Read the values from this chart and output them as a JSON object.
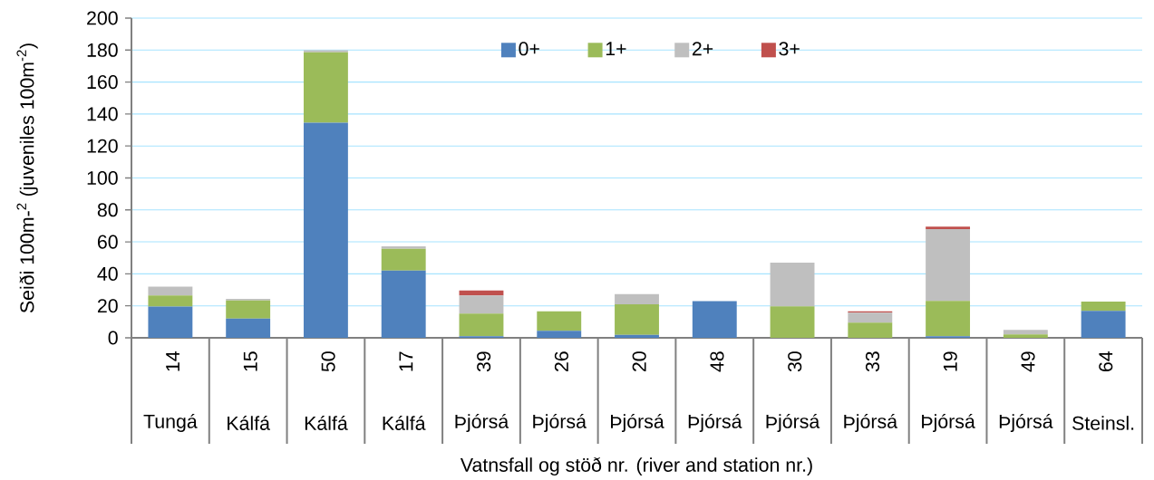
{
  "chart_data": {
    "type": "bar",
    "stacked": true,
    "xlabel": "Vatnsfall og stöð nr. (river and station nr.)",
    "ylabel": "Seiði 100m-$^{2}$ (juveniles 100m$^{-2}$)",
    "categories": [
      "14",
      "15",
      "50",
      "17",
      "39",
      "26",
      "20",
      "48",
      "30",
      "33",
      "19",
      "49",
      "64"
    ],
    "annotations": [
      "Tungá",
      "Kálfá",
      "Kálfá",
      "Kálfá",
      "Þjórsá",
      "Þjórsá",
      "Þjórsá",
      "Þjórsá",
      "Þjórsá",
      "Þjórsá",
      "Þjórsá",
      "Þjórsá",
      "Steinsl."
    ],
    "series": [
      {
        "name": "0+",
        "color": "#4f81bd",
        "values": [
          19.5,
          12,
          134.6,
          42.1,
          1,
          4.4,
          1.9,
          22.9,
          null,
          null,
          1,
          null,
          16.9
        ]
      },
      {
        "name": "1+",
        "color": "#9bbb59",
        "values": [
          7,
          11.3,
          44,
          13.6,
          14.2,
          12.1,
          19,
          null,
          19.7,
          9.5,
          22.1,
          2.1,
          5.7
        ]
      },
      {
        "name": "2+",
        "color": "#bfbfbf",
        "values": [
          5.5,
          1,
          1.3,
          1.5,
          11.3,
          null,
          6.4,
          null,
          27.3,
          6.2,
          44.9,
          2.8,
          null
        ]
      },
      {
        "name": "3+",
        "color": "#c0504d",
        "values": [
          null,
          null,
          null,
          null,
          3.1,
          null,
          null,
          null,
          null,
          0.8,
          1.6,
          null,
          null
        ]
      }
    ],
    "ylim": [
      0,
      200
    ],
    "yticks": [
      0,
      20,
      40,
      60,
      80,
      100,
      120,
      140,
      160,
      180,
      200
    ],
    "grid": "y",
    "legend": "top"
  }
}
